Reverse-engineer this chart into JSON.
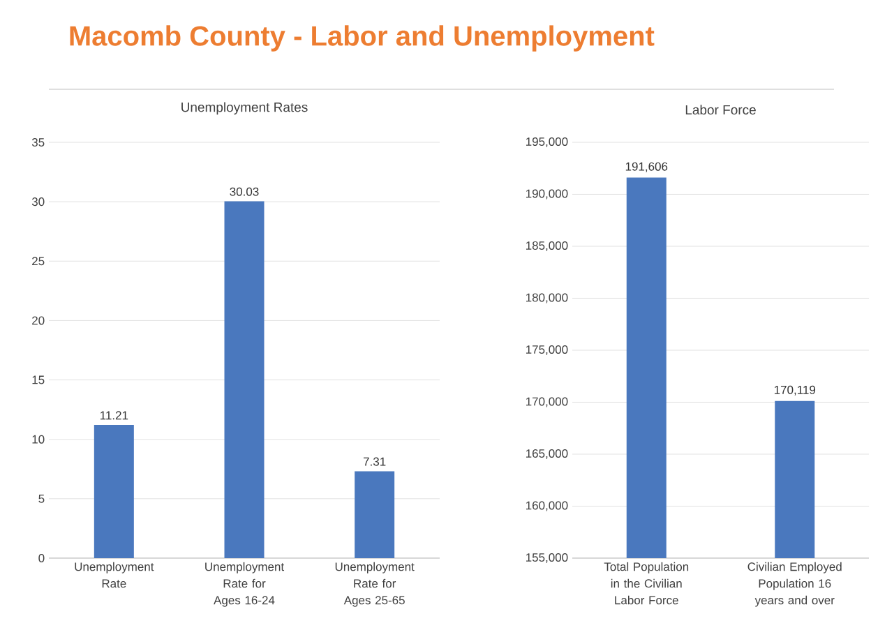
{
  "chart_data": [
    {
      "type": "bar",
      "title": "Unemployment Rates",
      "annotations": [
        "Macomb County - Labor and Unemployment"
      ],
      "categories": [
        "Unemployment Rate",
        "Unemployment Rate for Ages 16-24",
        "Unemployment Rate for Ages 25-65"
      ],
      "values": [
        11.21,
        30.03,
        7.31
      ],
      "value_labels": [
        "11.21",
        "30.03",
        "7.31"
      ],
      "color": "#4a78be",
      "ylim": [
        0,
        35
      ],
      "yticks": [
        0,
        5,
        10,
        15,
        20,
        25,
        30,
        35
      ],
      "grid": "y"
    },
    {
      "type": "bar",
      "title": "Labor Force",
      "categories": [
        "Total Population in the Civilian Labor Force",
        "Civilian Employed Population 16 years and over"
      ],
      "values": [
        191606,
        170119
      ],
      "value_labels": [
        "191,606",
        "170,119"
      ],
      "color": "#4a78be",
      "ylim": [
        155000,
        195000
      ],
      "yticks": [
        {
          "value": 155000,
          "label": "155,000"
        },
        {
          "value": 160000,
          "label": "160,000"
        },
        {
          "value": 165000,
          "label": "165,000"
        },
        {
          "value": 170000,
          "label": "170,000"
        },
        {
          "value": 175000,
          "label": "175,000"
        },
        {
          "value": 180000,
          "label": "180,000"
        },
        {
          "value": 185000,
          "label": "185,000"
        },
        {
          "value": 190000,
          "label": "190,000"
        },
        {
          "value": 195000,
          "label": "195,000"
        }
      ],
      "grid": "y"
    }
  ]
}
